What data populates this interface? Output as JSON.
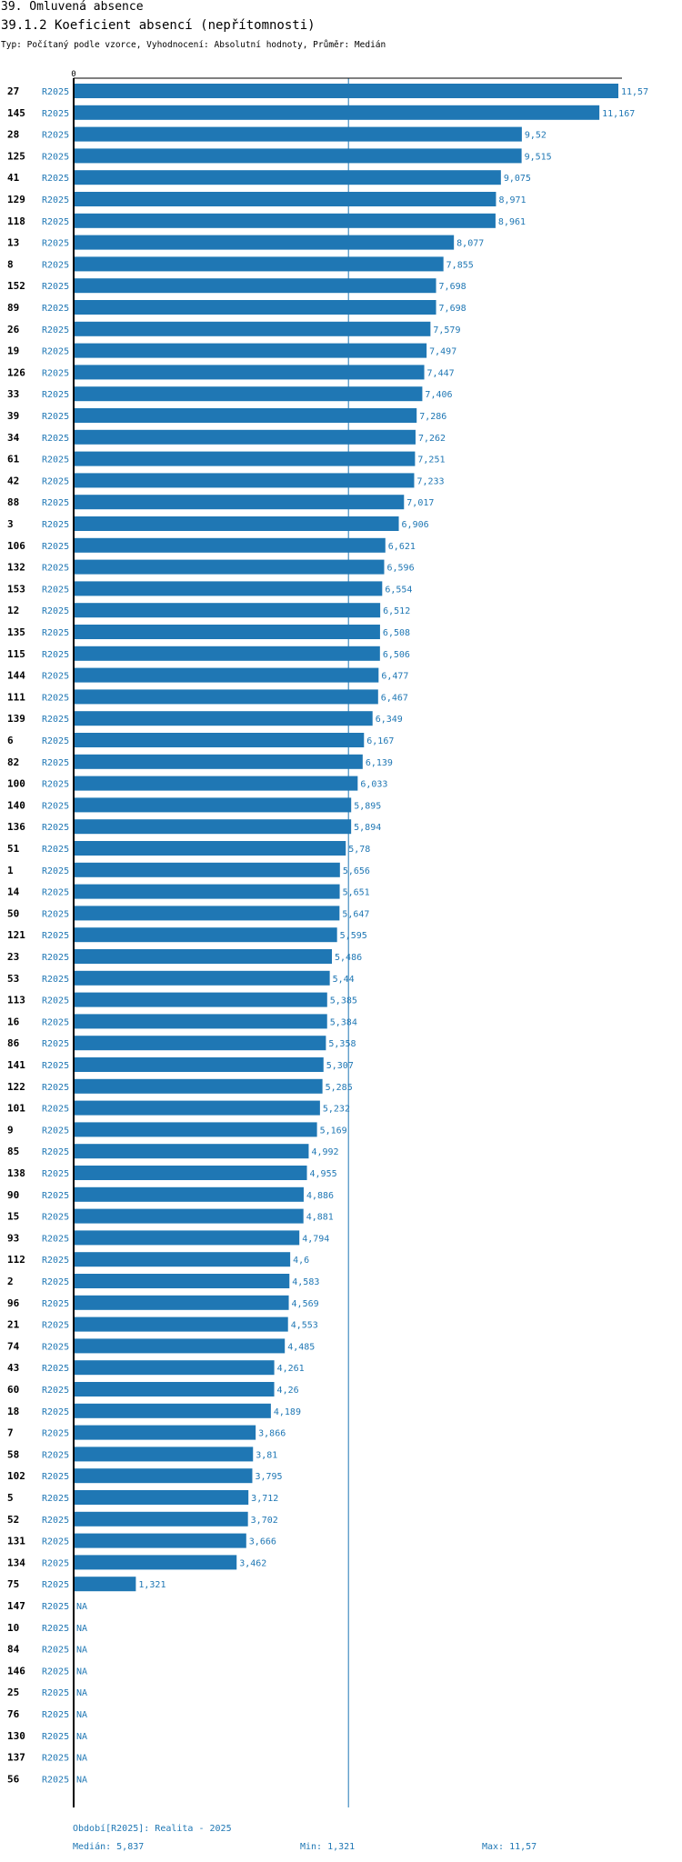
{
  "header": {
    "title": "39. Omluvená absence",
    "subtitle": "39.1.2 Koeficient absencí (nepřítomnosti)",
    "type_line": "Typ: Počítaný podle vzorce, Vyhodnocení: Absolutní hodnoty, Průměr: Medián"
  },
  "chart_data": {
    "type": "bar",
    "orientation": "horizontal",
    "series_label": "R2025",
    "x_tick": "0",
    "xlim": [
      0,
      11.57
    ],
    "median_line": 5.837,
    "na_label": "NA",
    "bar_color": "#1f77b4",
    "rows": [
      {
        "category": "27",
        "value": 11.57,
        "label": "11,57"
      },
      {
        "category": "145",
        "value": 11.167,
        "label": "11,167"
      },
      {
        "category": "28",
        "value": 9.52,
        "label": "9,52"
      },
      {
        "category": "125",
        "value": 9.515,
        "label": "9,515"
      },
      {
        "category": "41",
        "value": 9.075,
        "label": "9,075"
      },
      {
        "category": "129",
        "value": 8.971,
        "label": "8,971"
      },
      {
        "category": "118",
        "value": 8.961,
        "label": "8,961"
      },
      {
        "category": "13",
        "value": 8.077,
        "label": "8,077"
      },
      {
        "category": "8",
        "value": 7.855,
        "label": "7,855"
      },
      {
        "category": "152",
        "value": 7.698,
        "label": "7,698"
      },
      {
        "category": "89",
        "value": 7.698,
        "label": "7,698"
      },
      {
        "category": "26",
        "value": 7.579,
        "label": "7,579"
      },
      {
        "category": "19",
        "value": 7.497,
        "label": "7,497"
      },
      {
        "category": "126",
        "value": 7.447,
        "label": "7,447"
      },
      {
        "category": "33",
        "value": 7.406,
        "label": "7,406"
      },
      {
        "category": "39",
        "value": 7.286,
        "label": "7,286"
      },
      {
        "category": "34",
        "value": 7.262,
        "label": "7,262"
      },
      {
        "category": "61",
        "value": 7.251,
        "label": "7,251"
      },
      {
        "category": "42",
        "value": 7.233,
        "label": "7,233"
      },
      {
        "category": "88",
        "value": 7.017,
        "label": "7,017"
      },
      {
        "category": "3",
        "value": 6.906,
        "label": "6,906"
      },
      {
        "category": "106",
        "value": 6.621,
        "label": "6,621"
      },
      {
        "category": "132",
        "value": 6.596,
        "label": "6,596"
      },
      {
        "category": "153",
        "value": 6.554,
        "label": "6,554"
      },
      {
        "category": "12",
        "value": 6.512,
        "label": "6,512"
      },
      {
        "category": "135",
        "value": 6.508,
        "label": "6,508"
      },
      {
        "category": "115",
        "value": 6.506,
        "label": "6,506"
      },
      {
        "category": "144",
        "value": 6.477,
        "label": "6,477"
      },
      {
        "category": "111",
        "value": 6.467,
        "label": "6,467"
      },
      {
        "category": "139",
        "value": 6.349,
        "label": "6,349"
      },
      {
        "category": "6",
        "value": 6.167,
        "label": "6,167"
      },
      {
        "category": "82",
        "value": 6.139,
        "label": "6,139"
      },
      {
        "category": "100",
        "value": 6.033,
        "label": "6,033"
      },
      {
        "category": "140",
        "value": 5.895,
        "label": "5,895"
      },
      {
        "category": "136",
        "value": 5.894,
        "label": "5,894"
      },
      {
        "category": "51",
        "value": 5.78,
        "label": "5,78"
      },
      {
        "category": "1",
        "value": 5.656,
        "label": "5,656"
      },
      {
        "category": "14",
        "value": 5.651,
        "label": "5,651"
      },
      {
        "category": "50",
        "value": 5.647,
        "label": "5,647"
      },
      {
        "category": "121",
        "value": 5.595,
        "label": "5,595"
      },
      {
        "category": "23",
        "value": 5.486,
        "label": "5,486"
      },
      {
        "category": "53",
        "value": 5.44,
        "label": "5,44"
      },
      {
        "category": "113",
        "value": 5.385,
        "label": "5,385"
      },
      {
        "category": "16",
        "value": 5.384,
        "label": "5,384"
      },
      {
        "category": "86",
        "value": 5.358,
        "label": "5,358"
      },
      {
        "category": "141",
        "value": 5.307,
        "label": "5,307"
      },
      {
        "category": "122",
        "value": 5.285,
        "label": "5,285"
      },
      {
        "category": "101",
        "value": 5.232,
        "label": "5,232"
      },
      {
        "category": "9",
        "value": 5.169,
        "label": "5,169"
      },
      {
        "category": "85",
        "value": 4.992,
        "label": "4,992"
      },
      {
        "category": "138",
        "value": 4.955,
        "label": "4,955"
      },
      {
        "category": "90",
        "value": 4.886,
        "label": "4,886"
      },
      {
        "category": "15",
        "value": 4.881,
        "label": "4,881"
      },
      {
        "category": "93",
        "value": 4.794,
        "label": "4,794"
      },
      {
        "category": "112",
        "value": 4.6,
        "label": "4,6"
      },
      {
        "category": "2",
        "value": 4.583,
        "label": "4,583"
      },
      {
        "category": "96",
        "value": 4.569,
        "label": "4,569"
      },
      {
        "category": "21",
        "value": 4.553,
        "label": "4,553"
      },
      {
        "category": "74",
        "value": 4.485,
        "label": "4,485"
      },
      {
        "category": "43",
        "value": 4.261,
        "label": "4,261"
      },
      {
        "category": "60",
        "value": 4.26,
        "label": "4,26"
      },
      {
        "category": "18",
        "value": 4.189,
        "label": "4,189"
      },
      {
        "category": "7",
        "value": 3.866,
        "label": "3,866"
      },
      {
        "category": "58",
        "value": 3.81,
        "label": "3,81"
      },
      {
        "category": "102",
        "value": 3.795,
        "label": "3,795"
      },
      {
        "category": "5",
        "value": 3.712,
        "label": "3,712"
      },
      {
        "category": "52",
        "value": 3.702,
        "label": "3,702"
      },
      {
        "category": "131",
        "value": 3.666,
        "label": "3,666"
      },
      {
        "category": "134",
        "value": 3.462,
        "label": "3,462"
      },
      {
        "category": "75",
        "value": 1.321,
        "label": "1,321"
      },
      {
        "category": "147",
        "value": null,
        "label": "NA"
      },
      {
        "category": "10",
        "value": null,
        "label": "NA"
      },
      {
        "category": "84",
        "value": null,
        "label": "NA"
      },
      {
        "category": "146",
        "value": null,
        "label": "NA"
      },
      {
        "category": "25",
        "value": null,
        "label": "NA"
      },
      {
        "category": "76",
        "value": null,
        "label": "NA"
      },
      {
        "category": "130",
        "value": null,
        "label": "NA"
      },
      {
        "category": "137",
        "value": null,
        "label": "NA"
      },
      {
        "category": "56",
        "value": null,
        "label": "NA"
      }
    ]
  },
  "footer": {
    "period": "Období[R2025]: Realita - 2025",
    "median": "Medián: 5,837",
    "min": "Min: 1,321",
    "max": "Max: 11,57"
  }
}
